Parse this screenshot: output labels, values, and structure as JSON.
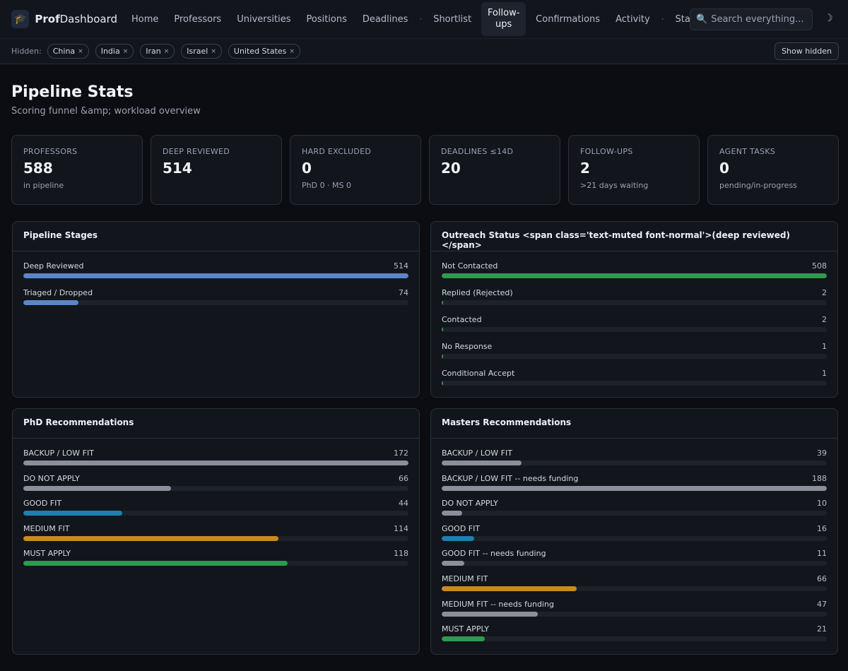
{
  "brand": {
    "bold": "Prof",
    "rest": "Dashboard",
    "icon": "graduation-cap-icon"
  },
  "nav": {
    "items": [
      "Home",
      "Professors",
      "Universities",
      "Positions",
      "Deadlines"
    ],
    "items2": [
      "Shortlist"
    ],
    "active": "Follow-ups",
    "items3": [
      "Confirmations",
      "Activity"
    ],
    "items4": [
      "Stats"
    ],
    "separator": "·"
  },
  "search": {
    "placeholder": "Search everything..."
  },
  "theme_toggle": "☽",
  "filters": {
    "label": "Hidden:",
    "chips": [
      "China",
      "India",
      "Iran",
      "Israel",
      "United States"
    ],
    "close": "×",
    "show_hidden": "Show hidden"
  },
  "page": {
    "title": "Pipeline Stats",
    "subtitle": "Scoring funnel &amp; workload overview"
  },
  "stats": [
    {
      "label": "PROFESSORS",
      "value": "588",
      "sub": "in pipeline"
    },
    {
      "label": "DEEP REVIEWED",
      "value": "514",
      "sub": ""
    },
    {
      "label": "HARD EXCLUDED",
      "value": "0",
      "sub": "PhD 0 · MS 0"
    },
    {
      "label": "DEADLINES ≤14D",
      "value": "20",
      "sub": ""
    },
    {
      "label": "FOLLOW-UPS",
      "value": "2",
      "sub": ">21 days waiting"
    },
    {
      "label": "AGENT TASKS",
      "value": "0",
      "sub": "pending/in-progress"
    }
  ],
  "colors": {
    "blue": "#5b86c8",
    "green": "#2f9a4f",
    "gray": "#8a8f99",
    "teal": "#1f7fb0",
    "orange": "#c98a1f"
  },
  "panels": {
    "pipeline": {
      "title": "Pipeline Stages",
      "rows": [
        {
          "label": "Deep Reviewed",
          "count": 514,
          "fraction": 1.0,
          "color": "#5b86c8"
        },
        {
          "label": "Triaged / Dropped",
          "count": 74,
          "fraction": 0.144,
          "color": "#5b86c8"
        }
      ]
    },
    "outreach": {
      "title": "Outreach Status <span class='text-muted font-normal'>(deep reviewed)</span>",
      "rows": [
        {
          "label": "Not Contacted",
          "count": 508,
          "fraction": 1.0,
          "color": "#2f9a4f"
        },
        {
          "label": "Replied (Rejected)",
          "count": 2,
          "fraction": 0.004,
          "color": "#2f9a4f"
        },
        {
          "label": "Contacted",
          "count": 2,
          "fraction": 0.004,
          "color": "#2f9a4f"
        },
        {
          "label": "No Response",
          "count": 1,
          "fraction": 0.002,
          "color": "#2f9a4f"
        },
        {
          "label": "Conditional Accept",
          "count": 1,
          "fraction": 0.002,
          "color": "#2f9a4f"
        }
      ]
    },
    "phd": {
      "title": "PhD Recommendations",
      "rows": [
        {
          "label": "BACKUP / LOW FIT",
          "count": 172,
          "fraction": 1.0,
          "color": "#8a8f99"
        },
        {
          "label": "DO NOT APPLY",
          "count": 66,
          "fraction": 0.384,
          "color": "#8a8f99"
        },
        {
          "label": "GOOD FIT",
          "count": 44,
          "fraction": 0.256,
          "color": "#1f7fb0"
        },
        {
          "label": "MEDIUM FIT",
          "count": 114,
          "fraction": 0.663,
          "color": "#c98a1f"
        },
        {
          "label": "MUST APPLY",
          "count": 118,
          "fraction": 0.686,
          "color": "#2f9a4f"
        }
      ]
    },
    "masters": {
      "title": "Masters Recommendations",
      "rows": [
        {
          "label": "BACKUP / LOW FIT",
          "count": 39,
          "fraction": 0.207,
          "color": "#8a8f99"
        },
        {
          "label": "BACKUP / LOW FIT -- needs funding",
          "count": 188,
          "fraction": 1.0,
          "color": "#8a8f99"
        },
        {
          "label": "DO NOT APPLY",
          "count": 10,
          "fraction": 0.053,
          "color": "#8a8f99"
        },
        {
          "label": "GOOD FIT",
          "count": 16,
          "fraction": 0.085,
          "color": "#1f7fb0"
        },
        {
          "label": "GOOD FIT -- needs funding",
          "count": 11,
          "fraction": 0.059,
          "color": "#8a8f99"
        },
        {
          "label": "MEDIUM FIT",
          "count": 66,
          "fraction": 0.351,
          "color": "#c98a1f"
        },
        {
          "label": "MEDIUM FIT -- needs funding",
          "count": 47,
          "fraction": 0.25,
          "color": "#8a8f99"
        },
        {
          "label": "MUST APPLY",
          "count": 21,
          "fraction": 0.112,
          "color": "#2f9a4f"
        }
      ]
    }
  }
}
